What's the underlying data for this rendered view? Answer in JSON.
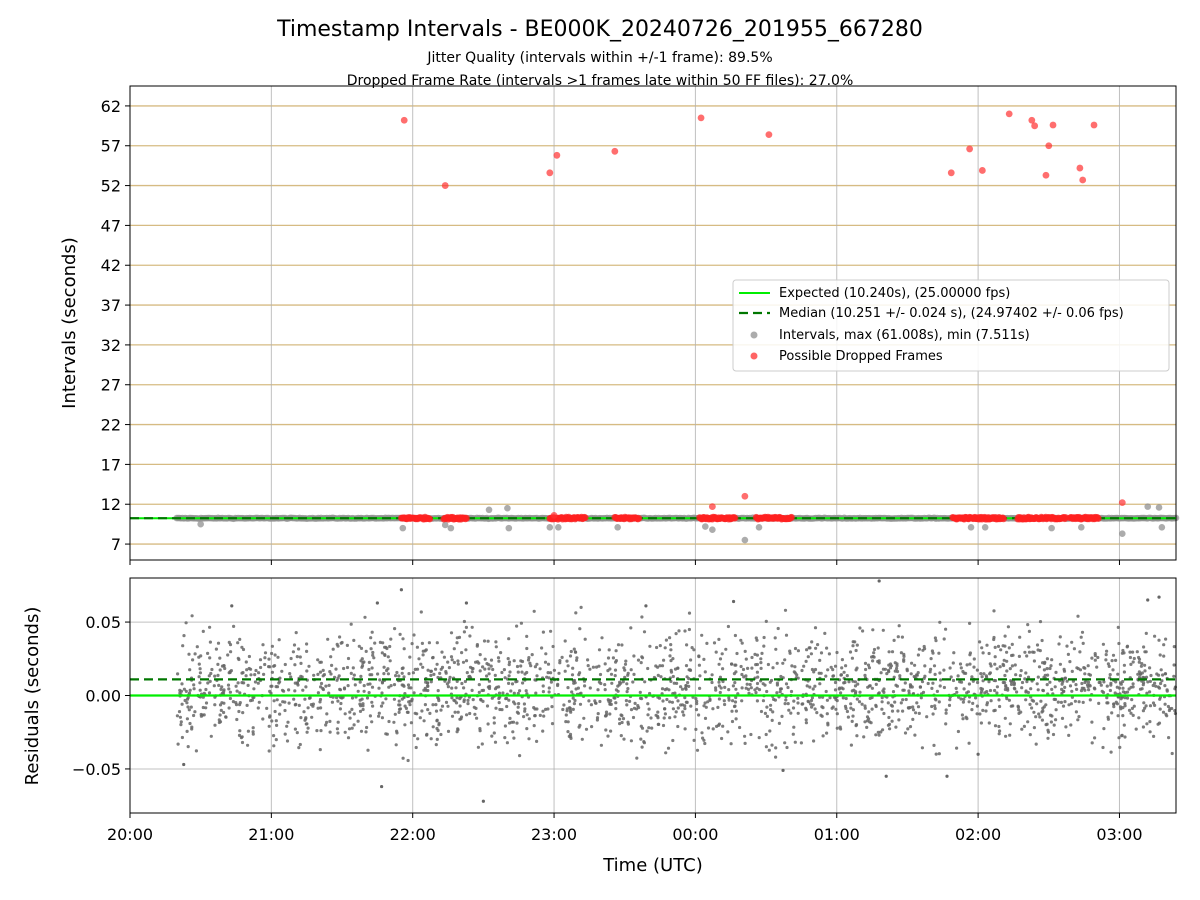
{
  "chart_data": [
    {
      "type": "scatter",
      "title": "Timestamp Intervals - BE000K_20240726_201955_667280",
      "subtitle_lines": [
        "Jitter Quality (intervals within +/-1 frame): 89.5%",
        "Dropped Frame Rate (intervals >1 frames late within 50 FF files): 27.0%"
      ],
      "xlabel": "",
      "ylabel": "Intervals (seconds)",
      "x_unit": "hours since 20:00 UTC",
      "xlim": [
        0,
        7.4
      ],
      "ylim": [
        5,
        64.5
      ],
      "yticks": [
        7,
        12,
        17,
        22,
        27,
        32,
        37,
        42,
        47,
        52,
        57,
        62
      ],
      "grid": "on",
      "legend_position": "center-right",
      "legend": [
        {
          "label": "Expected (10.240s), (25.00000 fps)",
          "kind": "solid-line",
          "color": "#00ee00"
        },
        {
          "label": "Median (10.251 +/- 0.024 s), (24.97402 +/- 0.06 fps)",
          "kind": "dashed-line",
          "color": "#007700"
        },
        {
          "label": "Intervals, max (61.008s), min (7.511s)",
          "kind": "marker",
          "color": "#909090"
        },
        {
          "label": "Possible Dropped Frames",
          "kind": "marker",
          "color": "#ff3030"
        }
      ],
      "expected_value": 10.24,
      "median_value": 10.251,
      "dropped_frames_outliers": {
        "x": [
          1.94,
          2.23,
          2.97,
          3.02,
          3.43,
          4.04,
          4.52,
          5.81,
          5.94,
          6.03,
          6.22,
          6.38,
          6.4,
          6.48,
          6.5,
          6.53,
          6.72,
          6.74,
          6.82,
          4.12,
          4.35,
          3.0,
          7.02
        ],
        "y": [
          60.2,
          52.0,
          53.6,
          55.8,
          56.3,
          60.5,
          58.4,
          53.6,
          56.6,
          53.9,
          61.0,
          60.2,
          59.5,
          53.3,
          57.0,
          59.6,
          54.2,
          52.7,
          59.6,
          11.7,
          13.0,
          10.6,
          12.2
        ]
      },
      "dropped_frames_bands_hours": [
        [
          1.92,
          2.12
        ],
        [
          2.22,
          2.38
        ],
        [
          2.97,
          3.22
        ],
        [
          3.43,
          3.6
        ],
        [
          4.03,
          4.28
        ],
        [
          4.43,
          4.68
        ],
        [
          5.82,
          6.18
        ],
        [
          6.28,
          6.62
        ],
        [
          6.65,
          6.85
        ]
      ],
      "interval_outliers": {
        "x": [
          0.5,
          1.93,
          2.23,
          2.27,
          2.54,
          2.67,
          2.68,
          2.97,
          3.03,
          3.45,
          4.07,
          4.12,
          4.35,
          4.45,
          5.95,
          6.05,
          6.52,
          6.73,
          7.02,
          7.2,
          7.28,
          7.3
        ],
        "y": [
          9.5,
          9.0,
          9.4,
          9.0,
          11.3,
          11.5,
          9.0,
          9.1,
          9.1,
          9.1,
          9.2,
          8.8,
          7.5,
          9.1,
          9.1,
          9.1,
          9.0,
          9.1,
          8.3,
          11.7,
          11.6,
          9.1
        ]
      }
    },
    {
      "type": "scatter",
      "xlabel": "Time (UTC)",
      "ylabel": "Residuals (seconds)",
      "x_unit": "hours since 20:00 UTC",
      "xlim": [
        0,
        7.4
      ],
      "ylim": [
        -0.08,
        0.08
      ],
      "yticks": [
        0.05,
        0.0,
        -0.05
      ],
      "ytick_labels": [
        "0.05",
        "0.00",
        "−0.05"
      ],
      "xticks": [
        0,
        1,
        2,
        3,
        4,
        5,
        6,
        7
      ],
      "xtick_labels": [
        "20:00",
        "21:00",
        "22:00",
        "23:00",
        "00:00",
        "01:00",
        "02:00",
        "03:00"
      ],
      "grid": "on",
      "expected_line": 0.0,
      "median_line": 0.011,
      "residual_scatter_note": "approx. 2400 residual points, x from 0.33 h to 7.4 h, y mostly within -0.04..0.05",
      "residual_outliers": {
        "x": [
          0.72,
          1.75,
          1.92,
          2.38,
          1.78,
          2.5,
          3.65,
          4.27,
          4.62,
          5.3,
          5.35,
          5.78,
          6.0,
          7.2,
          7.28,
          0.38
        ],
        "y": [
          0.061,
          0.063,
          0.072,
          0.063,
          -0.062,
          -0.072,
          0.061,
          0.064,
          -0.051,
          0.078,
          -0.055,
          -0.055,
          -0.04,
          0.065,
          0.067,
          -0.047
        ]
      }
    }
  ]
}
